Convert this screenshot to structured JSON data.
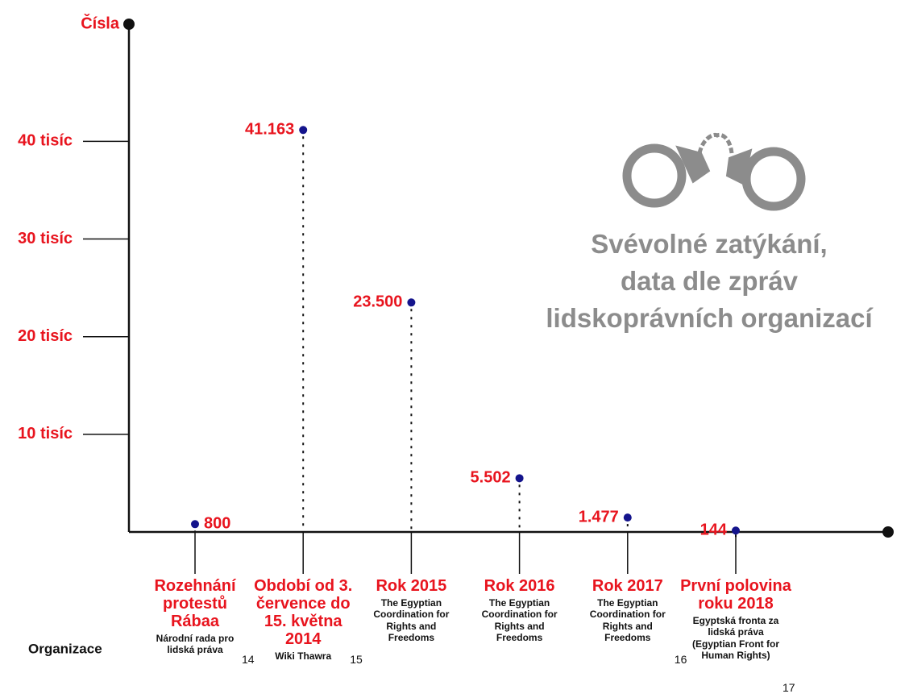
{
  "chart_data": {
    "type": "lollipop",
    "title": [
      "Svévolné zatýkání,",
      "data dle zpráv",
      "lidskoprávních organizací"
    ],
    "y_label": "Čísla",
    "row_label": "Organizace",
    "categories": [
      "Rozehnání protestů Rábaa",
      "Období od 3. července do 15. května 2014",
      "Rok 2015",
      "Rok 2016",
      "Rok 2017",
      "První polovina roku 2018"
    ],
    "organizations": [
      "Národní rada pro lidská práva",
      "Wiki Thawra",
      "The Egyptian Coordination for Rights and Freedoms",
      "The Egyptian Coordination for Rights and Freedoms",
      "The Egyptian Coordination for Rights and Freedoms",
      "Egyptská fronta za lidská práva (Egyptian Front for Human Rights)"
    ],
    "footnotes": [
      "14",
      "15",
      null,
      null,
      "16",
      "17"
    ],
    "values": [
      800,
      41163,
      23500,
      5502,
      1477,
      144
    ],
    "value_labels": [
      "800",
      "41.163",
      "23.500",
      "5.502",
      "1.477",
      "144"
    ],
    "color": "#14148c",
    "label_color": "#e8141e",
    "ylim": [
      0,
      52000
    ],
    "yticks": [
      {
        "value": 10000,
        "label": "10 tisíc"
      },
      {
        "value": 20000,
        "label": "20 tisíc"
      },
      {
        "value": 30000,
        "label": "30 tisíc"
      },
      {
        "value": 40000,
        "label": "40 tisíc"
      }
    ]
  }
}
